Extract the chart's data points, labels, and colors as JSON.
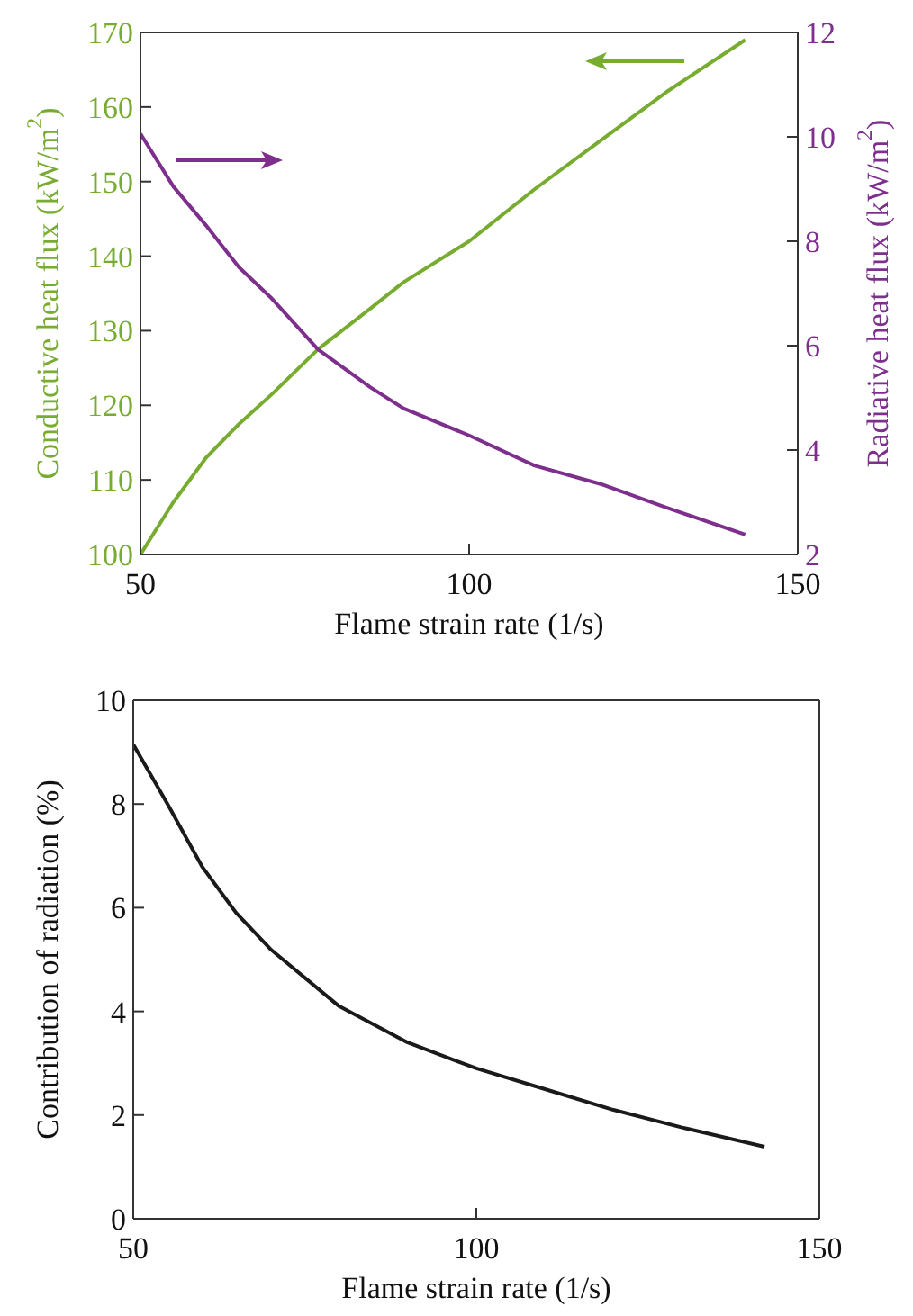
{
  "chart_data": [
    {
      "type": "line",
      "xlabel": "Flame strain rate (1/s)",
      "ylabel": "Conductive heat flux (kW/m$^{2}$)",
      "y2label": "Radiative heat flux (kW/m$^{2}$)",
      "x": [
        50,
        55,
        60,
        65,
        70,
        77,
        85,
        90,
        100,
        110,
        120,
        130,
        142
      ],
      "xlim": [
        50,
        150
      ],
      "xticks": [
        50,
        100,
        150
      ],
      "ylim": [
        100,
        170
      ],
      "yticks": [
        100,
        110,
        120,
        130,
        140,
        150,
        160,
        170
      ],
      "y2lim": [
        2,
        12
      ],
      "y2ticks": [
        2,
        4,
        6,
        8,
        10,
        12
      ],
      "grid": false,
      "legend": false,
      "marker": "none",
      "line_style": "solid",
      "series": [
        {
          "color": "#77ac30",
          "values": [
            100,
            107,
            113,
            117.5,
            121.5,
            127.5,
            133,
            136.5,
            142,
            149,
            155.5,
            162,
            169
          ]
        },
        {
          "color": "#7e2f8e",
          "axis": "y2",
          "values": [
            10.06,
            9.05,
            8.3,
            7.5,
            6.9,
            5.93,
            5.2,
            4.8,
            4.28,
            3.7,
            3.35,
            2.9,
            2.38
          ]
        }
      ]
    },
    {
      "type": "line",
      "xlabel": "Flame strain rate (1/s)",
      "ylabel": "Contribution of radiation (%)",
      "x": [
        50,
        55,
        60,
        65,
        70,
        80,
        90,
        100,
        110,
        120,
        130,
        142
      ],
      "xlim": [
        50,
        150
      ],
      "xticks": [
        50,
        100,
        150
      ],
      "ylim": [
        0,
        10
      ],
      "yticks": [
        0,
        2,
        4,
        6,
        8,
        10
      ],
      "grid": false,
      "legend": false,
      "marker": "none",
      "line_style": "solid",
      "series": [
        {
          "color": "#1a1a1a",
          "values": [
            9.15,
            8.0,
            6.8,
            5.9,
            5.2,
            4.1,
            3.4,
            2.9,
            2.5,
            2.1,
            1.76,
            1.39
          ]
        }
      ]
    }
  ]
}
